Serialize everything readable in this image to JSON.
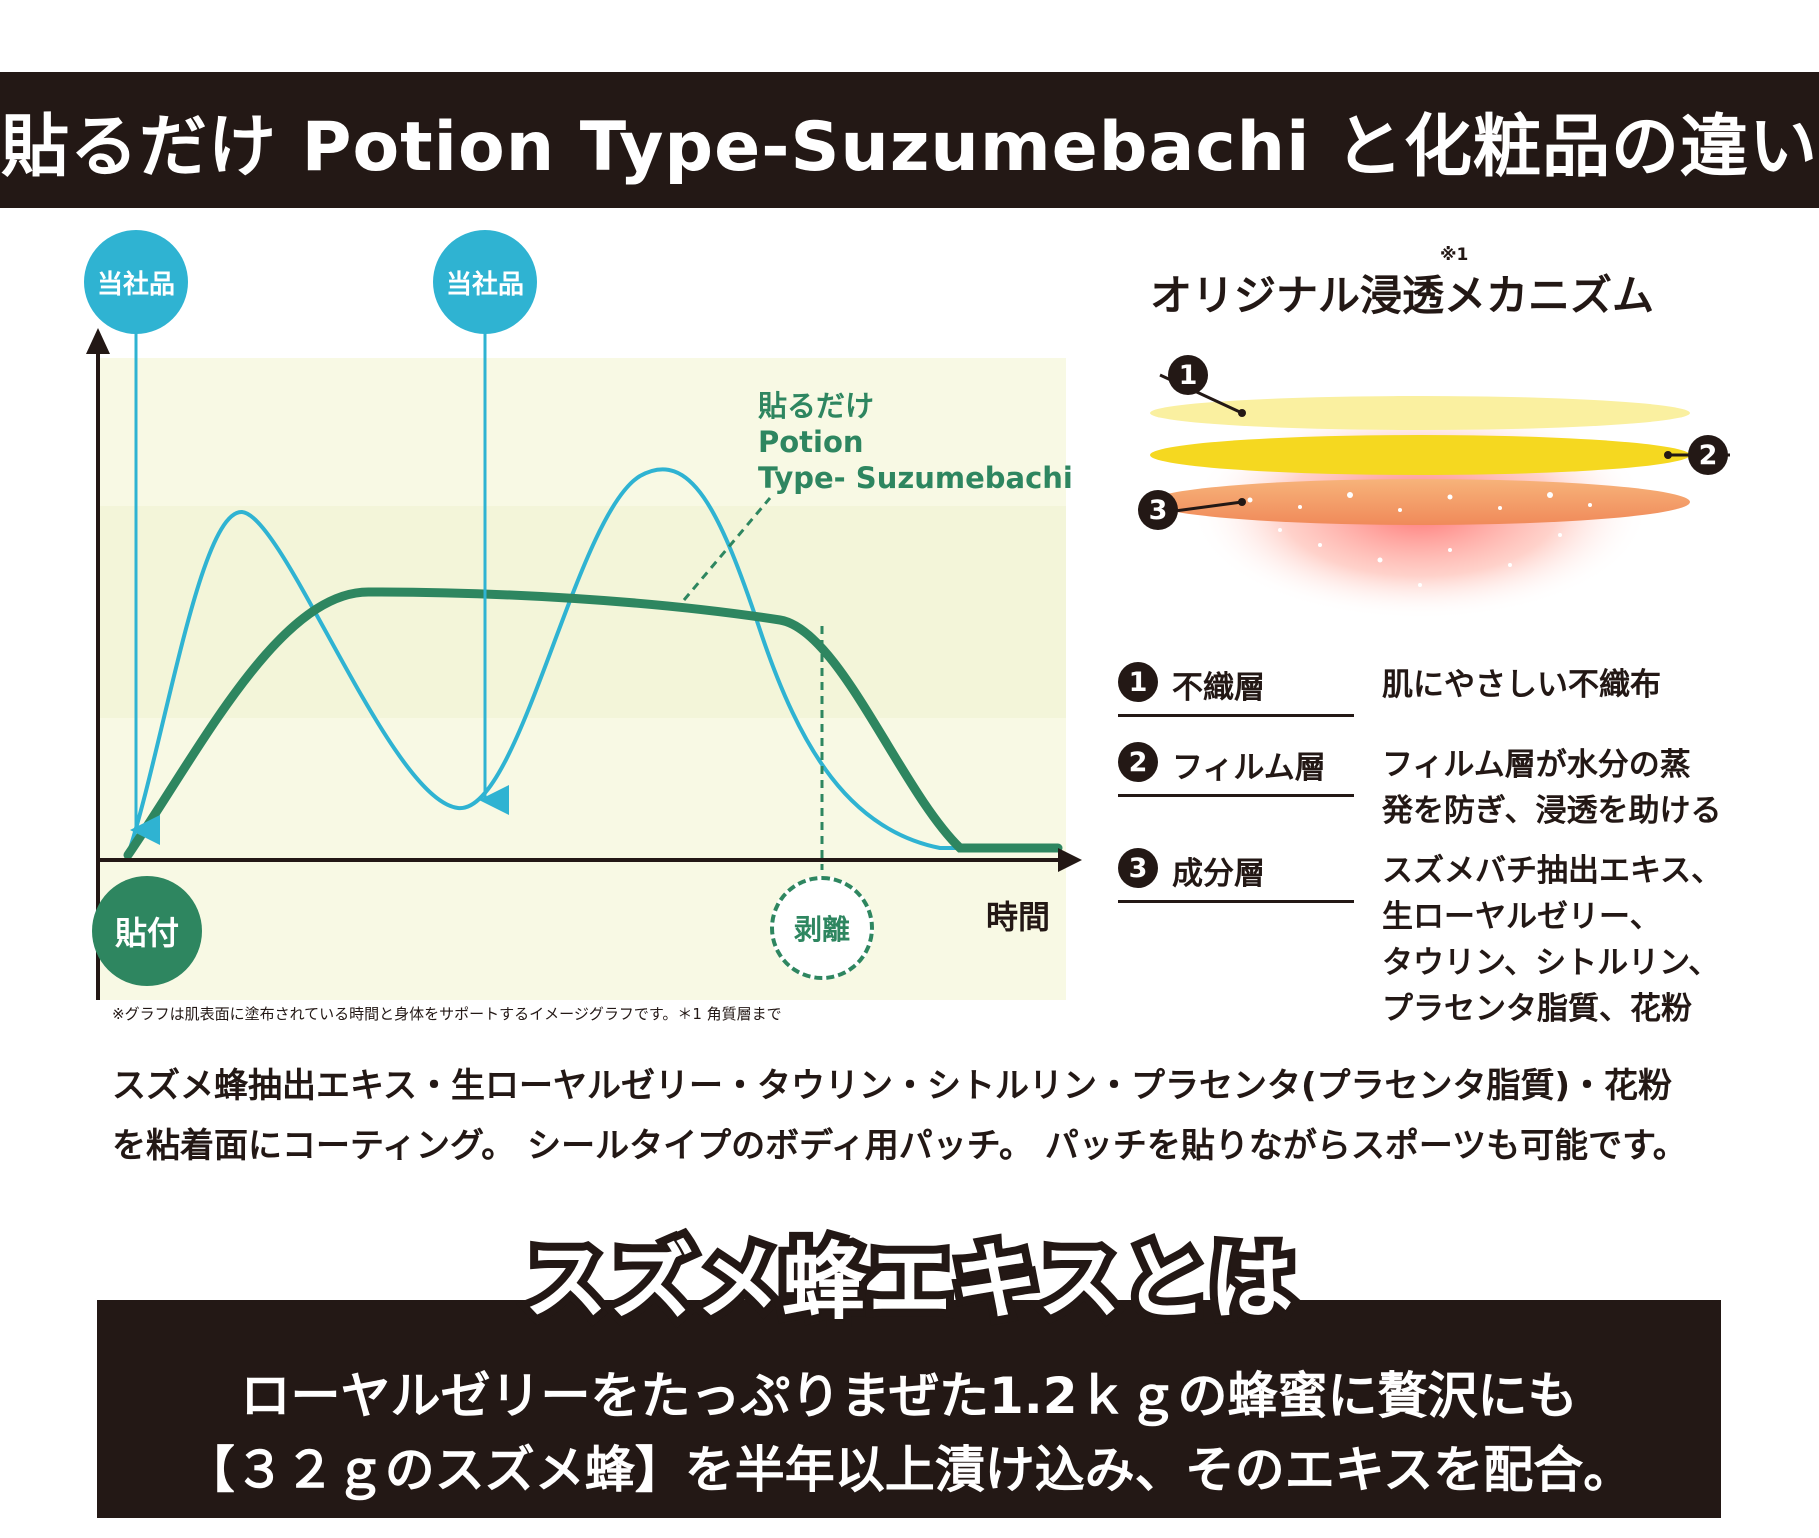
{
  "title": "貼るだけ Potion Type-Suzumebachi と化粧品の違い",
  "graph": {
    "ours_label": "当社品",
    "apply_label": "貼付",
    "peel_label": "剥離",
    "x_axis_label": "時間",
    "series_label_lines": [
      "貼るだけ",
      "Potion",
      "Type- Suzumebachi"
    ],
    "footnote": "※グラフは肌表面に塗布されている時間と身体をサポートするイメージグラフです。＊1 角質層まで",
    "colors": {
      "patch": "#2e8660",
      "cosmetic": "#2fb3d2",
      "band_light": "#f8f9e4",
      "band_dark": "#f3f5d9"
    }
  },
  "mechanism": {
    "title": "オリジナル浸透メカニズム",
    "note": "※1",
    "layers": [
      {
        "num": "1",
        "name": "不織層",
        "desc_lines": [
          "肌にやさしい不織布"
        ]
      },
      {
        "num": "2",
        "name": "フィルム層",
        "desc_lines": [
          "フィルム層が水分の蒸",
          "発を防ぎ、浸透を助ける"
        ]
      },
      {
        "num": "3",
        "name": "成分層",
        "desc_lines": [
          "スズメバチ抽出エキス、",
          "生ローヤルゼリー、",
          "タウリン、シトルリン、",
          "プラセンタ脂質、花粉"
        ]
      }
    ]
  },
  "body_lines": [
    "スズメ蜂抽出エキス・生ローヤルゼリー・タウリン・シトルリン・プラセンタ(プラセンタ脂質)・花粉",
    "を粘着面にコーティング。 シールタイプのボディ用パッチ。 パッチを貼りながらスポーツも可能です。"
  ],
  "extract": {
    "heading": "スズメ蜂エキスとは",
    "lines": [
      "ローヤルゼリーをたっぷりまぜた1.2ｋｇの蜂蜜に贅沢にも",
      "【３２ｇのスズメ蜂】を半年以上漬け込み、そのエキスを配合。"
    ]
  }
}
